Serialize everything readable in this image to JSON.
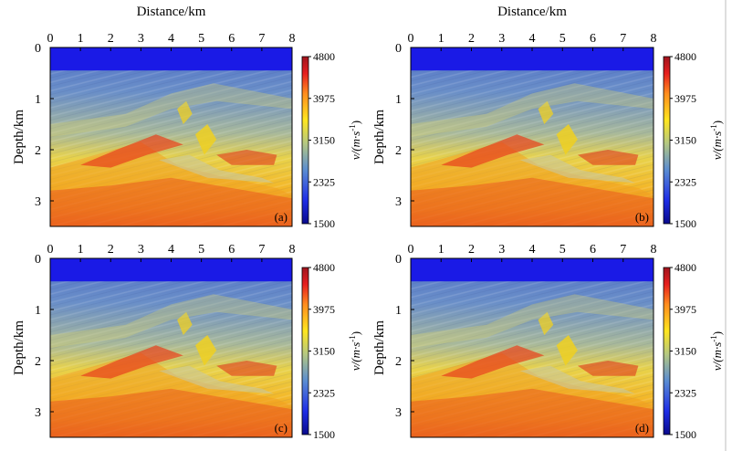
{
  "chart_data": {
    "type": "heatmap",
    "description_panels": [
      "(a)",
      "(b)",
      "(c)",
      "(d)"
    ],
    "xlabel": "Distance/km",
    "ylabel": "Depth/km",
    "x_ticks": [
      "0",
      "1",
      "2",
      "3",
      "4",
      "5",
      "6",
      "7",
      "8"
    ],
    "y_ticks": [
      "0",
      "1",
      "2",
      "3"
    ],
    "xlim": [
      0,
      8
    ],
    "ylim": [
      0,
      3.5
    ],
    "colorbar": {
      "label": "v/(m·s",
      "label_sup": "-1",
      "label_close": ")",
      "ticks": [
        "4800",
        "3975",
        "3150",
        "2325",
        "1500"
      ],
      "range": [
        1500,
        4800
      ],
      "colors": [
        "#0a0a8c",
        "#1e2de6",
        "#5a8cd2",
        "#b4c882",
        "#ffe61e",
        "#ff8c1e",
        "#e61e1e",
        "#a0141e"
      ]
    },
    "water_layer_depth_km": 0.45,
    "palette": {
      "water": "#1a1ae6",
      "shallow": "#5b7fd0",
      "mid": "#b9c28a",
      "deep": "#f0b824",
      "deepest": "#e8501e"
    }
  }
}
